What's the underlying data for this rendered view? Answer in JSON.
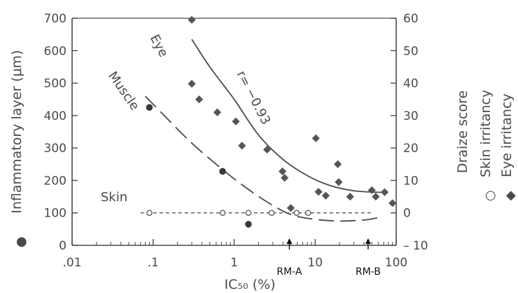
{
  "chart_data": {
    "type": "scatter",
    "x_scale": "log",
    "xlim": [
      0.01,
      100
    ],
    "ylim_left": [
      0,
      700
    ],
    "ylim_right": [
      -10,
      60
    ],
    "xlabel": "IC₅₀ (%)",
    "ylabel_left": "Inflammatory layer (μm)",
    "ylabel_right": "Draize score",
    "x_ticks": [
      {
        "value": 0.01,
        "label": ".01"
      },
      {
        "value": 0.1,
        "label": ".1"
      },
      {
        "value": 1,
        "label": "1"
      },
      {
        "value": 10,
        "label": "10"
      },
      {
        "value": 100,
        "label": "100"
      }
    ],
    "y_ticks_left": [
      {
        "value": 0,
        "label": "0"
      },
      {
        "value": 100,
        "label": "100"
      },
      {
        "value": 200,
        "label": "200"
      },
      {
        "value": 300,
        "label": "300"
      },
      {
        "value": 400,
        "label": "400"
      },
      {
        "value": 500,
        "label": "500"
      },
      {
        "value": 600,
        "label": "600"
      },
      {
        "value": 700,
        "label": "700"
      }
    ],
    "y_ticks_right": [
      {
        "value": -10,
        "label": "– 10"
      },
      {
        "value": 0,
        "label": "0"
      },
      {
        "value": 10,
        "label": "10"
      },
      {
        "value": 20,
        "label": "20"
      },
      {
        "value": 30,
        "label": "30"
      },
      {
        "value": 40,
        "label": "40"
      },
      {
        "value": 50,
        "label": "50"
      },
      {
        "value": 60,
        "label": "60"
      }
    ],
    "series": [
      {
        "name": "Inflammatory layer",
        "legend_symbol": "●",
        "axis": "left",
        "marker": "filled-circle",
        "points": [
          {
            "x": 0.09,
            "y": 425
          },
          {
            "x": 0.72,
            "y": 228
          },
          {
            "x": 1.5,
            "y": 65
          }
        ]
      },
      {
        "name": "Skin irritancy",
        "legend_symbol": "○",
        "axis": "right",
        "marker": "open-circle",
        "points": [
          {
            "x": 0.09,
            "y": 0
          },
          {
            "x": 0.72,
            "y": 0
          },
          {
            "x": 1.5,
            "y": 0
          },
          {
            "x": 2.9,
            "y": 0
          },
          {
            "x": 5.9,
            "y": 0
          },
          {
            "x": 8.2,
            "y": 0
          }
        ]
      },
      {
        "name": "Eye irritancy",
        "legend_symbol": "◆",
        "axis": "right",
        "marker": "filled-diamond",
        "points": [
          {
            "x": 0.3,
            "y": 59.5
          },
          {
            "x": 0.3,
            "y": 39.8
          },
          {
            "x": 0.37,
            "y": 35
          },
          {
            "x": 0.62,
            "y": 31
          },
          {
            "x": 1.05,
            "y": 28.2
          },
          {
            "x": 1.25,
            "y": 20.7
          },
          {
            "x": 2.55,
            "y": 19.5
          },
          {
            "x": 3.95,
            "y": 12.8
          },
          {
            "x": 4.2,
            "y": 10.8
          },
          {
            "x": 5,
            "y": 1.5
          },
          {
            "x": 10.2,
            "y": 23
          },
          {
            "x": 11,
            "y": 6.5
          },
          {
            "x": 13.5,
            "y": 5.3
          },
          {
            "x": 19,
            "y": 15
          },
          {
            "x": 19.5,
            "y": 9.5
          },
          {
            "x": 27,
            "y": 5
          },
          {
            "x": 50,
            "y": 7
          },
          {
            "x": 56,
            "y": 5
          },
          {
            "x": 72,
            "y": 6.4
          },
          {
            "x": 90,
            "y": 3
          }
        ]
      }
    ],
    "curves": [
      {
        "name": "Eye",
        "label": "Eye",
        "axis": "right",
        "style": "solid",
        "points": [
          {
            "x": 0.3,
            "y": 53.5
          },
          {
            "x": 0.5,
            "y": 45
          },
          {
            "x": 1,
            "y": 35
          },
          {
            "x": 2,
            "y": 24
          },
          {
            "x": 4,
            "y": 16.5
          },
          {
            "x": 8,
            "y": 11.5
          },
          {
            "x": 15,
            "y": 8.5
          },
          {
            "x": 30,
            "y": 6.8
          },
          {
            "x": 70,
            "y": 6.3
          }
        ]
      },
      {
        "name": "Muscle",
        "label": "Muscle",
        "axis": "left",
        "style": "long-dash",
        "points": [
          {
            "x": 0.08,
            "y": 460
          },
          {
            "x": 0.15,
            "y": 390
          },
          {
            "x": 0.3,
            "y": 315
          },
          {
            "x": 0.6,
            "y": 250
          },
          {
            "x": 1.2,
            "y": 190
          },
          {
            "x": 2.5,
            "y": 135
          },
          {
            "x": 5,
            "y": 95
          },
          {
            "x": 10,
            "y": 80
          },
          {
            "x": 20,
            "y": 75
          },
          {
            "x": 40,
            "y": 78
          },
          {
            "x": 60,
            "y": 85
          }
        ]
      },
      {
        "name": "Skin",
        "label": "Skin",
        "axis": "right",
        "style": "short-dash",
        "points": [
          {
            "x": 0.07,
            "y": 0
          },
          {
            "x": 50,
            "y": 0
          }
        ]
      }
    ],
    "annotations": [
      {
        "text": "r= −0.93",
        "near": "Eye curve"
      },
      {
        "text": "RM-A",
        "x": 4.8,
        "style": "arrow"
      },
      {
        "text": "RM-B",
        "x": 45,
        "style": "arrow"
      }
    ],
    "grid": false,
    "colors": {
      "ink": "#4a4a4a",
      "marker": "#555555",
      "marker_dark": "#3a3a3a",
      "arrow": "#111111"
    }
  }
}
